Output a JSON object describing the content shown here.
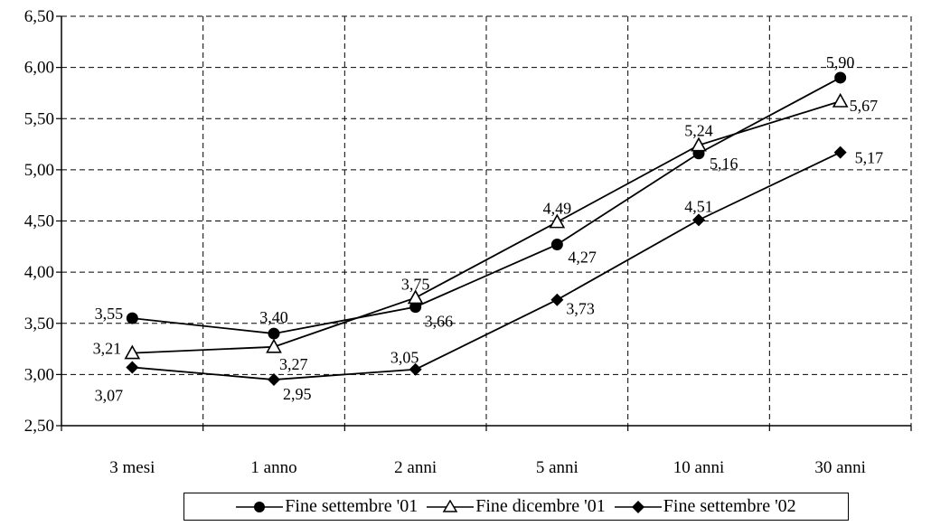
{
  "chart_data": {
    "type": "line",
    "categories": [
      "3 mesi",
      "1 anno",
      "2 anni",
      "5 anni",
      "10 anni",
      "30 anni"
    ],
    "yticks": [
      "2,50",
      "3,00",
      "3,50",
      "4,00",
      "4,50",
      "5,00",
      "5,50",
      "6,00",
      "6,50"
    ],
    "ylim": [
      2.5,
      6.5
    ],
    "grid": true,
    "legend_position": "bottom",
    "series": [
      {
        "name": "Fine settembre '01",
        "marker": "circle",
        "values": [
          3.55,
          3.4,
          3.66,
          4.27,
          5.16,
          5.9
        ],
        "labels": [
          "3,55",
          "3,40",
          "3,66",
          "4,27",
          "5,16",
          "5,90"
        ]
      },
      {
        "name": "Fine dicembre '01",
        "marker": "triangle",
        "values": [
          3.21,
          3.27,
          3.75,
          4.49,
          5.24,
          5.67
        ],
        "labels": [
          "3,21",
          "3,27",
          "3,75",
          "4,49",
          "5,24",
          "5,67"
        ]
      },
      {
        "name": "Fine settembre '02",
        "marker": "diamond",
        "values": [
          3.07,
          2.95,
          3.05,
          3.73,
          4.51,
          5.17
        ],
        "labels": [
          "3,07",
          "2,95",
          "3,05",
          "3,73",
          "4,51",
          "5,17"
        ]
      }
    ]
  }
}
